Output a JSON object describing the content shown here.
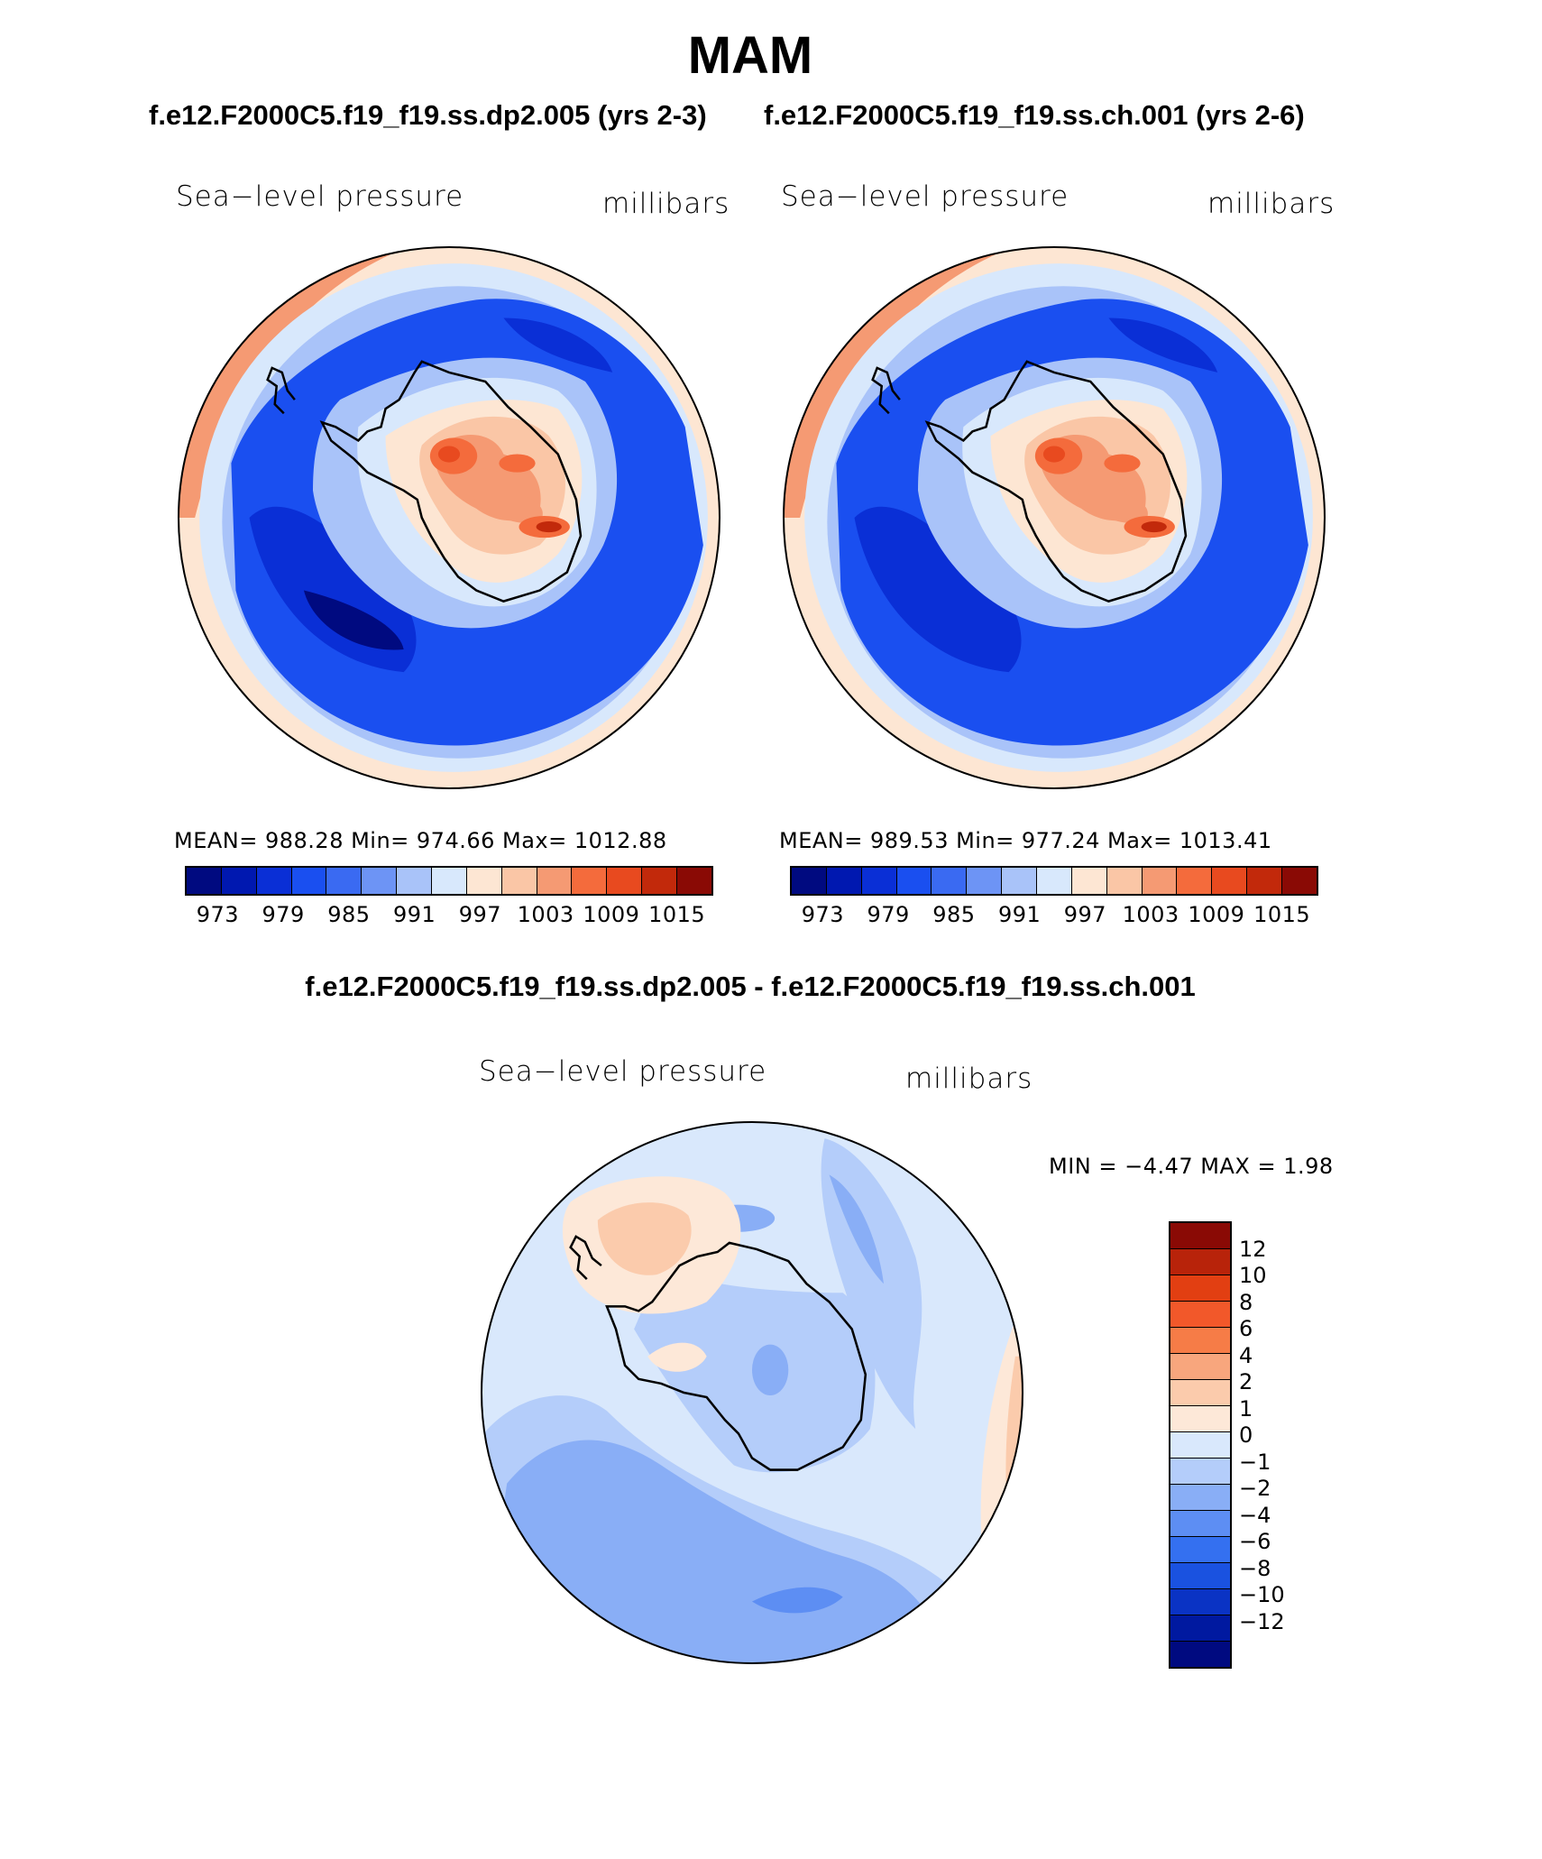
{
  "season": "MAM",
  "case1_title": "f.e12.F2000C5.f19_f19.ss.dp2.005 (yrs 2-3)",
  "case2_title": "f.e12.F2000C5.f19_f19.ss.ch.001 (yrs 2-6)",
  "diff_title": "f.e12.F2000C5.f19_f19.ss.dp2.005 - f.e12.F2000C5.f19_f19.ss.ch.001",
  "panels": [
    {
      "variable": "Sea−level pressure",
      "units": "millibars",
      "stats": "MEAN=  988.28   Min=  974.66    Max=  1012.88",
      "colorbar_labels": [
        "973",
        "979",
        "985",
        "991",
        "997",
        "1003",
        "1009",
        "1015"
      ]
    },
    {
      "variable": "Sea−level pressure",
      "units": "millibars",
      "stats": "MEAN=  989.53   Min=  977.24    Max=  1013.41",
      "colorbar_labels": [
        "973",
        "979",
        "985",
        "991",
        "997",
        "1003",
        "1009",
        "1015"
      ]
    }
  ],
  "diff_panel": {
    "variable": "Sea−level pressure",
    "units": "millibars",
    "minmax": "MIN =    −4.47  MAX =     1.98",
    "colorbar_labels": [
      "12",
      "10",
      "8",
      "6",
      "4",
      "2",
      "1",
      "0",
      "−1",
      "−2",
      "−4",
      "−6",
      "−8",
      "−10",
      "−12"
    ]
  },
  "colors": {
    "abs_scale": [
      "#000a80",
      "#0018b0",
      "#0a2fd6",
      "#1a4ff0",
      "#3a6af2",
      "#6d94f5",
      "#a9c3f9",
      "#d8e8fc",
      "#fde6d3",
      "#fac6a6",
      "#f59a73",
      "#f46b3c",
      "#e84a1f",
      "#c2290b",
      "#8a0a05"
    ],
    "diff_scale": [
      "#8a0a05",
      "#b8230a",
      "#e23f12",
      "#f2582a",
      "#f67c47",
      "#f8a67d",
      "#fbcbac",
      "#fde8d8",
      "#d9e8fc",
      "#b4cdfa",
      "#89aef6",
      "#5d8ef3",
      "#3470f0",
      "#1a52e0",
      "#0a33c4",
      "#0019a0",
      "#000a80"
    ]
  }
}
